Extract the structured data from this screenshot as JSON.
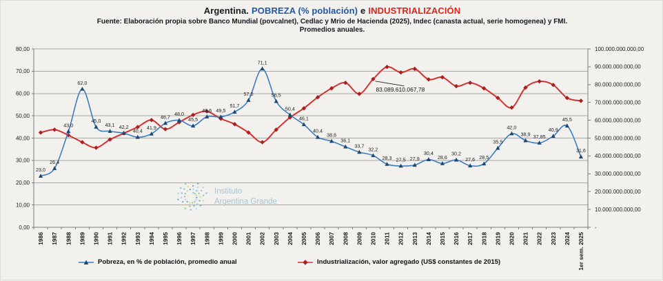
{
  "header": {
    "title_argentina": "Argentina.",
    "title_pobreza": "POBREZA (% población)",
    "title_e": "e",
    "title_industrializacion": "INDUSTRIALIZACIÓN",
    "subtitle": "Fuente:  Elaboración propia sobre Banco Mundial (povcalnet), Cedlac y Mrio de Hacienda (2025), Indec (canasta actual, serie homogenea) y FMI.",
    "subtitle2": "Promedios anuales."
  },
  "watermark": {
    "line1": "Instituto",
    "line2": "Argentina Grande"
  },
  "legend": {
    "pobreza_label": "Pobreza, en % de población, promedio anual",
    "industrializacion_label": "Industrialización, valor agregado (US$ constantes de 2015)"
  },
  "annotation": {
    "text": "83.089.610.067,78",
    "category": "2010",
    "value_billions": 83.09
  },
  "colors": {
    "title_blue": "#2356a7",
    "title_red": "#e02318",
    "pobreza_line": "#3b7cc0",
    "pobreza_marker": "#1e4872",
    "industrializacion_line": "#d23230",
    "industrializacion_marker": "#aa1f1f",
    "grid": "#a6a6a3",
    "axis": "#7a7a7a",
    "watermark_text": "#a9c3d2"
  },
  "chart_data": {
    "type": "line",
    "categories": [
      "1986",
      "1987",
      "1988",
      "1989",
      "1990",
      "1991",
      "1992",
      "1993",
      "1994",
      "1995",
      "1996",
      "1997",
      "1998",
      "1999",
      "2000",
      "2001",
      "2002",
      "2003",
      "2004",
      "2005",
      "2006",
      "2007",
      "2008",
      "2009",
      "2010",
      "2011",
      "2012",
      "2013",
      "2014",
      "2015",
      "2016",
      "2017",
      "2018",
      "2019",
      "2020",
      "2021",
      "2022",
      "2023",
      "2024",
      "1er sem. 2025"
    ],
    "series": [
      {
        "name": "Pobreza, en % de población, promedio anual",
        "axis": "left",
        "marker": "triangle",
        "values": [
          23.0,
          26.4,
          43.0,
          62.0,
          45.0,
          43.1,
          42.2,
          40.4,
          41.9,
          46.7,
          48.0,
          45.5,
          49.6,
          49.5,
          51.7,
          57.0,
          71.1,
          56.5,
          50.4,
          46.1,
          40.4,
          38.6,
          36.1,
          33.7,
          32.2,
          28.3,
          27.5,
          27.9,
          30.4,
          28.6,
          30.2,
          27.6,
          28.5,
          35.5,
          42.0,
          38.9,
          37.85,
          40.9,
          45.5,
          31.6
        ],
        "point_labels": [
          "23,0",
          "26,4",
          "43,0",
          "62,0",
          "45,0",
          "43,1",
          "42,2",
          "40,4",
          "41,9",
          "46,7",
          "48,0",
          "45,5",
          "49,6",
          "49,5",
          "51,7",
          "57,0",
          "71,1",
          "56,5",
          "50,4",
          "46,1",
          "40,4",
          "38,6",
          "36,1",
          "33,7",
          "32,2",
          "28,3",
          "27,5",
          "27,9",
          "30,4",
          "28,6",
          "30,2",
          "27,6",
          "28,5",
          "35,5",
          "42,0",
          "38,9",
          "37,85",
          "40,9",
          "45,5",
          "31,6"
        ]
      },
      {
        "name": "Industrialización, valor agregado (US$ constantes de 2015)",
        "axis": "right",
        "marker": "diamond",
        "values_billions_usd": [
          53.1,
          54.7,
          51.6,
          47.7,
          44.6,
          49.2,
          52.7,
          56.2,
          60.1,
          55.0,
          58.9,
          63.0,
          65.0,
          60.9,
          57.8,
          53.1,
          47.7,
          54.7,
          61.6,
          66.7,
          72.9,
          77.9,
          81.0,
          74.8,
          83.09,
          89.9,
          86.8,
          88.8,
          82.9,
          84.1,
          79.1,
          81.0,
          77.9,
          72.5,
          67.1,
          78.3,
          81.8,
          79.8,
          72.5,
          70.9
        ]
      }
    ],
    "left_axis": {
      "min": 0,
      "max": 80,
      "step": 10,
      "tick_labels": [
        "80,00",
        "70,00",
        "60,00",
        "50,00",
        "40,00",
        "30,00",
        "20,00",
        "10,00",
        "0,00"
      ]
    },
    "right_axis": {
      "min": 0,
      "max": 100000000000,
      "tick_labels": [
        "100.000.000.000,00",
        "90.000.000.000,00",
        "80.000.000.000,00",
        "70.000.000.000,00",
        "60.000.000.000,00",
        "50.000.000.000,00",
        "40.000.000.000,00",
        "30.000.000.000,00",
        "20.000.000.000,00",
        "10.000.000.000,00",
        "-"
      ]
    },
    "grid": true,
    "legend_position": "bottom",
    "x_labels_rotated": true
  }
}
